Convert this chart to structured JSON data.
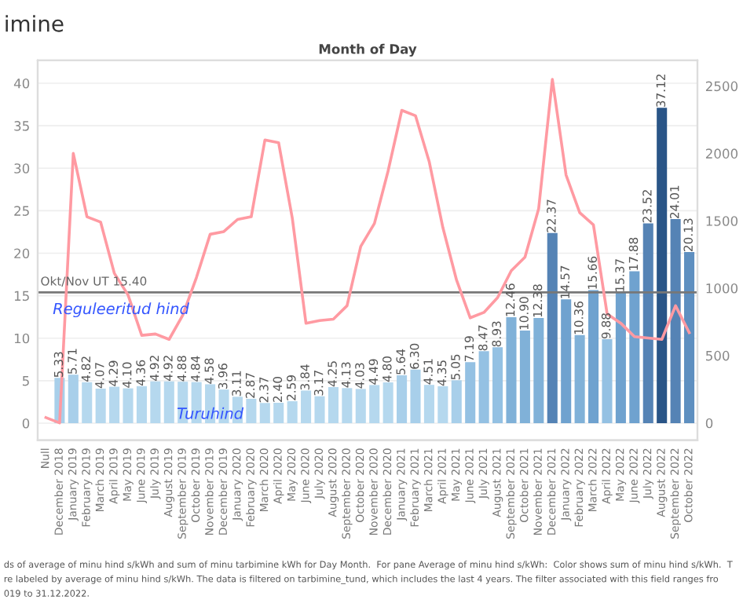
{
  "chart_data": {
    "type": "bar",
    "title": "imine",
    "xlabel": "Month of Day",
    "categories": [
      "Null",
      "December 2018",
      "January 2019",
      "February 2019",
      "March 2019",
      "April 2019",
      "May 2019",
      "June 2019",
      "July 2019",
      "August 2019",
      "September 2019",
      "October 2019",
      "November 2019",
      "December 2019",
      "January 2020",
      "February 2020",
      "March 2020",
      "April 2020",
      "May 2020",
      "June 2020",
      "July 2020",
      "August 2020",
      "September 2020",
      "October 2020",
      "November 2020",
      "December 2020",
      "January 2021",
      "February 2021",
      "March 2021",
      "April 2021",
      "May 2021",
      "June 2021",
      "July 2021",
      "August 2021",
      "September 2021",
      "October 2021",
      "November 2021",
      "December 2021",
      "January 2022",
      "February 2022",
      "March 2022",
      "April 2022",
      "May 2022",
      "June 2022",
      "July 2022",
      "August 2022",
      "September 2022",
      "October 2022"
    ],
    "series": [
      {
        "values": [
          null,
          5.33,
          5.71,
          4.82,
          4.07,
          4.29,
          4.1,
          4.36,
          4.92,
          4.92,
          4.88,
          4.84,
          4.58,
          3.96,
          3.11,
          2.87,
          2.37,
          2.4,
          2.59,
          3.84,
          3.17,
          4.25,
          4.13,
          4.03,
          4.49,
          4.8,
          5.64,
          6.3,
          4.51,
          4.35,
          5.05,
          7.19,
          8.47,
          8.93,
          12.46,
          10.9,
          12.38,
          22.37,
          14.57,
          10.36,
          15.66,
          9.88,
          15.37,
          17.88,
          23.52,
          37.12,
          24.01,
          20.13
        ],
        "colors": [
          "#b5d8ee",
          "#a8cfea",
          "#a8cfea",
          "#b5d8ee",
          "#b5d8ee",
          "#b5d8ee",
          "#b5d8ee",
          "#b5d8ee",
          "#b5d8ee",
          "#b5d8ee",
          "#b5d8ee",
          "#b5d8ee",
          "#b5d8ee",
          "#b5d8ee",
          "#b5d8ee",
          "#b5d8ee",
          "#b5d8ee",
          "#b5d8ee",
          "#b5d8ee",
          "#b5d8ee",
          "#b5d8ee",
          "#b5d8ee",
          "#b5d8ee",
          "#b5d8ee",
          "#b5d8ee",
          "#b5d8ee",
          "#a8cfea",
          "#a8cfea",
          "#b5d8ee",
          "#b5d8ee",
          "#a8cfea",
          "#94c1e3",
          "#94c1e3",
          "#94c1e3",
          "#80b1d8",
          "#80b1d8",
          "#80b1d8",
          "#5583b5",
          "#6fa2cf",
          "#80b1d8",
          "#6fa2cf",
          "#94c1e3",
          "#6fa2cf",
          "#6fa2cf",
          "#5583b5",
          "#2a5587",
          "#5583b5",
          "#5e8fc0"
        ],
        "value_labels": [
          null,
          "5.33",
          "5.71",
          "4.82",
          "4.07",
          "4.29",
          "4.10",
          "4.36",
          "4.92",
          "4.92",
          "4.88",
          "4.84",
          "4.58",
          "3.96",
          "3.11",
          "2.87",
          "2.37",
          "2.40",
          "2.59",
          "3.84",
          "3.17",
          "4.25",
          "4.13",
          "4.03",
          "4.49",
          "4.80",
          "5.64",
          "6.30",
          "4.51",
          "4.35",
          "5.05",
          "7.19",
          "8.47",
          "8.93",
          "12.46",
          "10.90",
          "12.38",
          "22.37",
          "14.57",
          "10.36",
          "15.66",
          "9.88",
          "15.37",
          "17.88",
          "23.52",
          "37.12",
          "24.01",
          "20.13"
        ]
      },
      {
        "type": "line",
        "axis": "y2",
        "color": "#ff9aa2",
        "values": [
          40,
          0,
          2000,
          1530,
          1490,
          1110,
          950,
          650,
          660,
          620,
          800,
          1080,
          1400,
          1420,
          1510,
          1530,
          2100,
          2080,
          1520,
          740,
          760,
          770,
          870,
          1310,
          1480,
          1870,
          2320,
          2280,
          1940,
          1450,
          1060,
          780,
          820,
          930,
          1130,
          1230,
          1590,
          2550,
          1840,
          1560,
          1470,
          810,
          740,
          640,
          630,
          620,
          870,
          670
        ]
      }
    ],
    "ylim": [
      -2,
      42.7
    ],
    "yticks": [
      0,
      5,
      10,
      15,
      20,
      25,
      30,
      35,
      40
    ],
    "y2lim": [
      -128,
      2691
    ],
    "y2ticks": [
      0,
      500,
      1000,
      1500,
      2000,
      2500
    ],
    "grid": "y",
    "ref_lines": [
      {
        "axis": "y",
        "value": 15.4,
        "label": "Okt/Nov UT 15.40",
        "color": "#777777"
      }
    ],
    "annotations": [
      "Reguleeritud hind",
      "Turuhind",
      "ds of average of minu hind s/kWh and sum of minu tarbimine kWh for Day Month.  For pane Average of minu hind s/kWh:  Color shows sum of minu hind s/kWh.  T",
      "re labeled by average of minu hind s/kWh. The data is filtered on tarbimine_tund, which includes the last 4 years. The filter associated with this field ranges fro",
      "019 to 31.12.2022."
    ]
  }
}
